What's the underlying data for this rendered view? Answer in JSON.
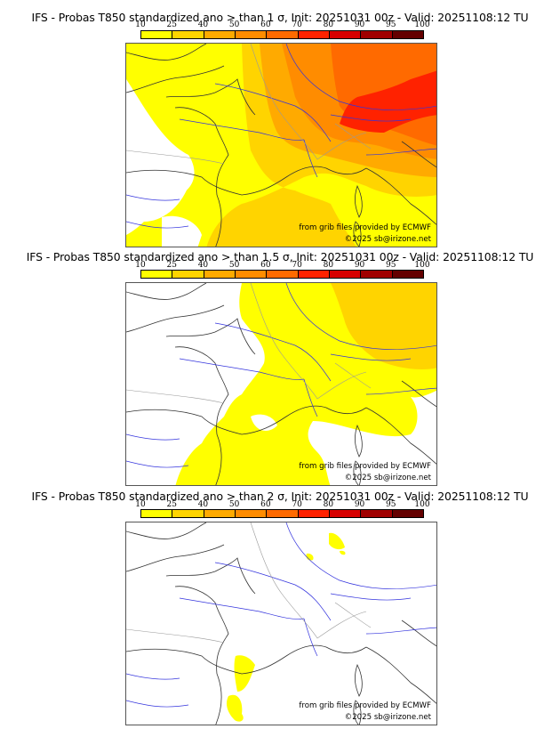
{
  "colorbar": {
    "ticks": [
      "10",
      "25",
      "40",
      "50",
      "60",
      "70",
      "80",
      "90",
      "95",
      "100"
    ],
    "colors": [
      "#ffff00",
      "#ffd400",
      "#ffaa00",
      "#ff8c00",
      "#ff6a00",
      "#ff2200",
      "#d70000",
      "#a00000",
      "#640000"
    ]
  },
  "panels": [
    {
      "title": "IFS - Probas T850  standardized ano > than 1 σ, Init: 20251031 00z - Valid: 20251108:12 TU",
      "credit_source": "from grib files provided by ECMWF",
      "credit_copyright": "©2025 sb@irizone.net"
    },
    {
      "title": "IFS - Probas T850  standardized ano > than 1.5 σ, Init: 20251031 00z - Valid: 20251108:12 TU",
      "credit_source": "from grib files provided by ECMWF",
      "credit_copyright": "©2025 sb@irizone.net"
    },
    {
      "title": "IFS - Probas T850  standardized ano > than 2 σ, Init: 20251031 00z - Valid: 20251108:12 TU",
      "credit_source": "from grib files provided by ECMWF",
      "credit_copyright": "©2025 sb@irizone.net"
    }
  ]
}
